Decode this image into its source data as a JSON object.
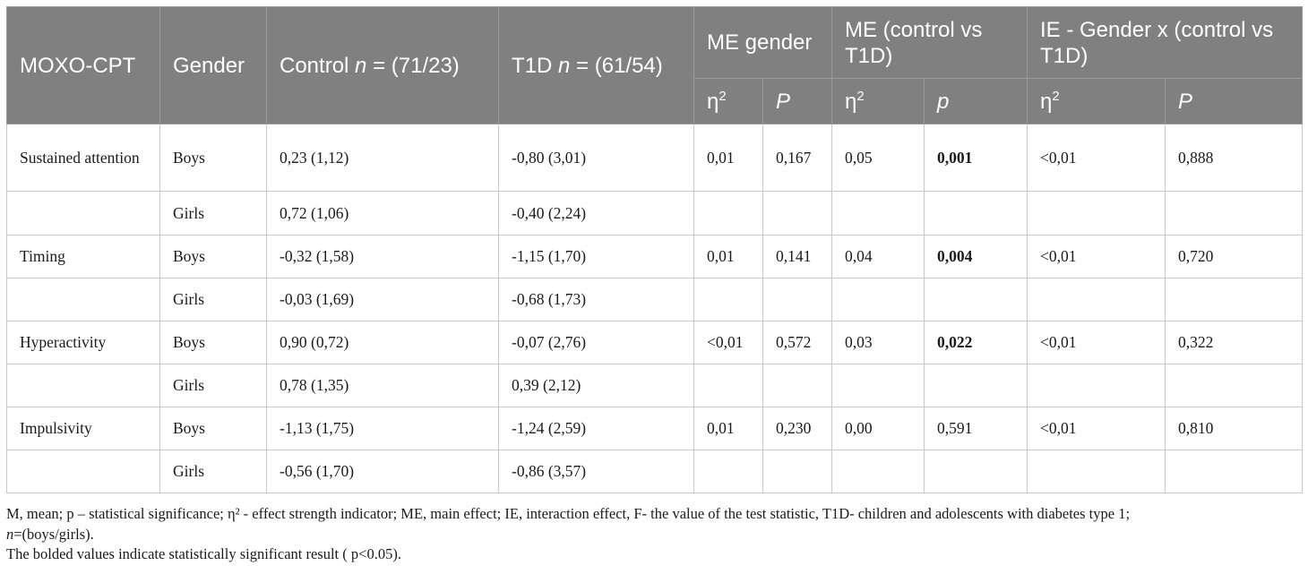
{
  "header": {
    "col_measure": "MOXO-CPT",
    "col_gender": "Gender",
    "col_control_prefix": "Control ",
    "col_control_n": "n",
    "col_control_suffix": " = (71/23)",
    "col_t1d_prefix": "T1D ",
    "col_t1d_n": "n",
    "col_t1d_suffix": " = (61/54)",
    "group_me_gender": "ME gender",
    "group_me_control": "ME (control vs T1D)",
    "group_ie": "IE - Gender x (control vs T1D)",
    "sub_eta": "η",
    "sub_eta_sup": "2",
    "sub_p_upper": "P",
    "sub_p_lower": "p"
  },
  "rows": [
    {
      "measure": "Sustained attention",
      "gender": "Boys",
      "control": "0,23 (1,12)",
      "t1d": "-0,80 (3,01)",
      "me_gender_eta": "0,01",
      "me_gender_p": "0,167",
      "me_control_eta": "0,05",
      "me_control_p": "0,001",
      "ie_eta": "<0,01",
      "ie_p": "0,888"
    },
    {
      "measure": "",
      "gender": "Girls",
      "control": "0,72 (1,06)",
      "t1d": "-0,40 (2,24)",
      "me_gender_eta": "",
      "me_gender_p": "",
      "me_control_eta": "",
      "me_control_p": "",
      "ie_eta": "",
      "ie_p": ""
    },
    {
      "measure": "Timing",
      "gender": "Boys",
      "control": "-0,32 (1,58)",
      "t1d": "-1,15 (1,70)",
      "me_gender_eta": "0,01",
      "me_gender_p": "0,141",
      "me_control_eta": "0,04",
      "me_control_p": "0,004",
      "ie_eta": "<0,01",
      "ie_p": "0,720"
    },
    {
      "measure": "",
      "gender": "Girls",
      "control": "-0,03 (1,69)",
      "t1d": "-0,68 (1,73)",
      "me_gender_eta": "",
      "me_gender_p": "",
      "me_control_eta": "",
      "me_control_p": "",
      "ie_eta": "",
      "ie_p": ""
    },
    {
      "measure": "Hyperactivity",
      "gender": "Boys",
      "control": "0,90 (0,72)",
      "t1d": "-0,07 (2,76)",
      "me_gender_eta": "<0,01",
      "me_gender_p": "0,572",
      "me_control_eta": "0,03",
      "me_control_p": "0,022",
      "ie_eta": "<0,01",
      "ie_p": "0,322"
    },
    {
      "measure": "",
      "gender": "Girls",
      "control": "0,78 (1,35)",
      "t1d": "0,39 (2,12)",
      "me_gender_eta": "",
      "me_gender_p": "",
      "me_control_eta": "",
      "me_control_p": "",
      "ie_eta": "",
      "ie_p": ""
    },
    {
      "measure": "Impulsivity",
      "gender": "Boys",
      "control": "-1,13 (1,75)",
      "t1d": "-1,24 (2,59)",
      "me_gender_eta": "0,01",
      "me_gender_p": "0,230",
      "me_control_eta": "0,00",
      "me_control_p": "0,591",
      "ie_eta": "<0,01",
      "ie_p": "0,810"
    },
    {
      "measure": "",
      "gender": "Girls",
      "control": "-0,56 (1,70)",
      "t1d": "-0,86 (3,57)",
      "me_gender_eta": "",
      "me_gender_p": "",
      "me_control_eta": "",
      "me_control_p": "",
      "ie_eta": "",
      "ie_p": ""
    }
  ],
  "bold_cells": [
    "0.me_control_p",
    "2.me_control_p",
    "4.me_control_p"
  ],
  "footnote": {
    "line1": "M, mean; p – statistical significance; η² - effect strength indicator; ME, main effect; IE, interaction effect, F- the value of the test statistic, T1D- children and adolescents with diabetes type 1;",
    "line2_n": "n",
    "line2_rest": "=(boys/girls).",
    "line3": "The bolded values indicate statistically significant result ( p<0.05)."
  },
  "colors": {
    "header_bg": "#808080",
    "header_text": "#ffffff",
    "border": "#c8c8c8"
  }
}
